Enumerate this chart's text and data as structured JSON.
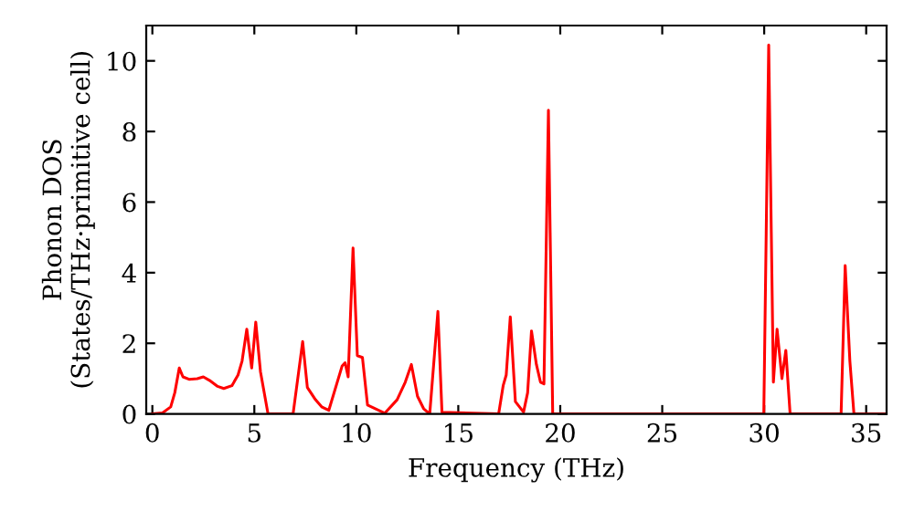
{
  "chart_data": {
    "type": "line",
    "xlabel": "Frequency (THz)",
    "ylabel": "Phonon DOS\n(States/THz·primitive cell)",
    "x": [
      0,
      0.5,
      0.9,
      1.1,
      1.32,
      1.5,
      1.8,
      2.2,
      2.5,
      2.8,
      3.2,
      3.5,
      3.9,
      4.2,
      4.4,
      4.63,
      4.87,
      5.07,
      5.3,
      5.67,
      6.9,
      7.37,
      7.6,
      8.0,
      8.3,
      8.65,
      9.3,
      9.45,
      9.6,
      9.84,
      10.05,
      10.3,
      10.55,
      11.4,
      12.0,
      12.4,
      12.7,
      13.0,
      13.3,
      13.6,
      14.0,
      14.2,
      16.98,
      17.2,
      17.35,
      17.55,
      17.8,
      18.2,
      18.4,
      18.59,
      18.83,
      19.03,
      19.2,
      19.42,
      19.63,
      29.98,
      30.22,
      30.45,
      30.63,
      30.87,
      31.06,
      31.27,
      33.77,
      33.97,
      34.2,
      34.4,
      36
    ],
    "series": [
      {
        "color": "#ff0000",
        "values": [
          0,
          0.03,
          0.2,
          0.6,
          1.3,
          1.05,
          0.98,
          1.0,
          1.05,
          0.95,
          0.78,
          0.72,
          0.8,
          1.1,
          1.5,
          2.4,
          1.3,
          2.6,
          1.2,
          0,
          0,
          2.05,
          0.75,
          0.4,
          0.2,
          0.1,
          1.35,
          1.45,
          1.05,
          4.7,
          1.65,
          1.6,
          0.25,
          0.02,
          0.4,
          0.9,
          1.4,
          0.5,
          0.15,
          0,
          2.9,
          0.05,
          0,
          0.8,
          1.1,
          2.75,
          0.35,
          0.05,
          0.6,
          2.35,
          1.4,
          0.9,
          0.85,
          8.6,
          0,
          0,
          10.45,
          0.9,
          2.4,
          1.0,
          1.8,
          0,
          0,
          4.2,
          1.5,
          0,
          0
        ]
      }
    ],
    "xlim": [
      -0.3,
      36
    ],
    "ylim": [
      0,
      11
    ],
    "xticks": [
      0,
      5,
      10,
      15,
      20,
      25,
      30,
      35
    ],
    "yticks": [
      0,
      2,
      4,
      6,
      8,
      10
    ],
    "grid": false,
    "marker": "none",
    "line_style": "solid"
  }
}
